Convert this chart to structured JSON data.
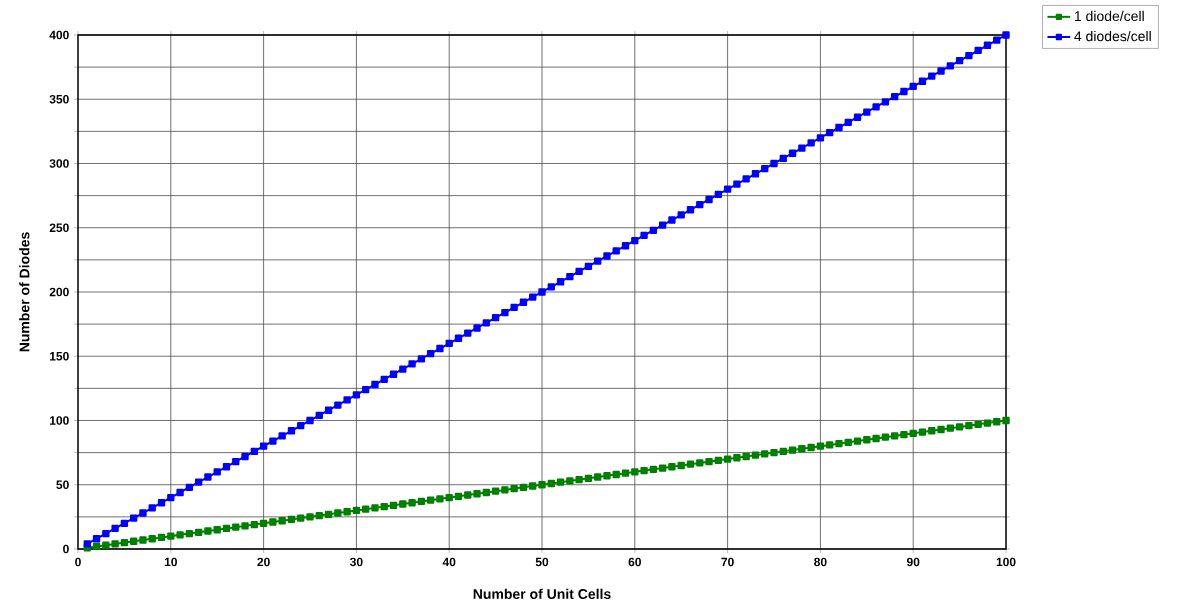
{
  "chart_data": {
    "type": "line",
    "xlabel": "Number of Unit Cells",
    "ylabel": "Number of Diodes",
    "x": [
      1,
      2,
      3,
      4,
      5,
      6,
      7,
      8,
      9,
      10,
      11,
      12,
      13,
      14,
      15,
      16,
      17,
      18,
      19,
      20,
      21,
      22,
      23,
      24,
      25,
      26,
      27,
      28,
      29,
      30,
      31,
      32,
      33,
      34,
      35,
      36,
      37,
      38,
      39,
      40,
      41,
      42,
      43,
      44,
      45,
      46,
      47,
      48,
      49,
      50,
      51,
      52,
      53,
      54,
      55,
      56,
      57,
      58,
      59,
      60,
      61,
      62,
      63,
      64,
      65,
      66,
      67,
      68,
      69,
      70,
      71,
      72,
      73,
      74,
      75,
      76,
      77,
      78,
      79,
      80,
      81,
      82,
      83,
      84,
      85,
      86,
      87,
      88,
      89,
      90,
      91,
      92,
      93,
      94,
      95,
      96,
      97,
      98,
      99,
      100
    ],
    "series": [
      {
        "name": "1 diode/cell",
        "color": "#008000",
        "values": [
          1,
          2,
          3,
          4,
          5,
          6,
          7,
          8,
          9,
          10,
          11,
          12,
          13,
          14,
          15,
          16,
          17,
          18,
          19,
          20,
          21,
          22,
          23,
          24,
          25,
          26,
          27,
          28,
          29,
          30,
          31,
          32,
          33,
          34,
          35,
          36,
          37,
          38,
          39,
          40,
          41,
          42,
          43,
          44,
          45,
          46,
          47,
          48,
          49,
          50,
          51,
          52,
          53,
          54,
          55,
          56,
          57,
          58,
          59,
          60,
          61,
          62,
          63,
          64,
          65,
          66,
          67,
          68,
          69,
          70,
          71,
          72,
          73,
          74,
          75,
          76,
          77,
          78,
          79,
          80,
          81,
          82,
          83,
          84,
          85,
          86,
          87,
          88,
          89,
          90,
          91,
          92,
          93,
          94,
          95,
          96,
          97,
          98,
          99,
          100
        ]
      },
      {
        "name": "4 diodes/cell",
        "color": "#0000ff",
        "values": [
          4,
          8,
          12,
          16,
          20,
          24,
          28,
          32,
          36,
          40,
          44,
          48,
          52,
          56,
          60,
          64,
          68,
          72,
          76,
          80,
          84,
          88,
          92,
          96,
          100,
          104,
          108,
          112,
          116,
          120,
          124,
          128,
          132,
          136,
          140,
          144,
          148,
          152,
          156,
          160,
          164,
          168,
          172,
          176,
          180,
          184,
          188,
          192,
          196,
          200,
          204,
          208,
          212,
          216,
          220,
          224,
          228,
          232,
          236,
          240,
          244,
          248,
          252,
          256,
          260,
          264,
          268,
          272,
          276,
          280,
          284,
          288,
          292,
          296,
          300,
          304,
          308,
          312,
          316,
          320,
          324,
          328,
          332,
          336,
          340,
          344,
          348,
          352,
          356,
          360,
          364,
          368,
          372,
          376,
          380,
          384,
          388,
          392,
          396,
          400
        ]
      }
    ],
    "xlim": [
      0,
      100
    ],
    "ylim": [
      0,
      400
    ],
    "xticks": [
      0,
      10,
      20,
      30,
      40,
      50,
      60,
      70,
      80,
      90,
      100
    ],
    "yticks": [
      0,
      {
        "value": 25,
        "label": null
      },
      50,
      {
        "value": 75,
        "label": null
      },
      100,
      {
        "value": 125,
        "label": null
      },
      150,
      {
        "value": 175,
        "label": null
      },
      200,
      {
        "value": 225,
        "label": null
      },
      250,
      {
        "value": 275,
        "label": null
      },
      300,
      {
        "value": 325,
        "label": null
      },
      350,
      {
        "value": 375,
        "label": null
      },
      400
    ],
    "grid": true,
    "legend": "top right",
    "marker": "square",
    "line_style": "solid"
  }
}
